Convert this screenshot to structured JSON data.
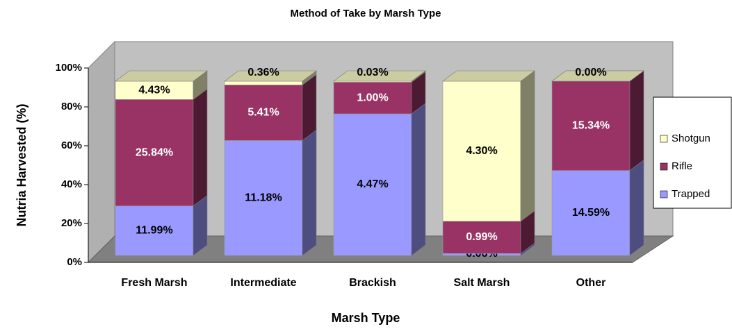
{
  "chart_data": {
    "type": "bar",
    "stacking": "percent",
    "title": "Method of Take by Marsh Type",
    "x_label": "Marsh Type",
    "y_label": "Nutria Harvested (%)",
    "categories": [
      "Fresh Marsh",
      "Intermediate",
      "Brackish",
      "Salt Marsh",
      "Other"
    ],
    "series": [
      {
        "name": "Trapped",
        "color": "#9999ff",
        "label_color": "#000000",
        "values": [
          11.99,
          11.18,
          4.47,
          0.06,
          14.59
        ],
        "value_labels": [
          "11.99%",
          "11.18%",
          "4.47%",
          "0.06%",
          "14.59%"
        ]
      },
      {
        "name": "Rifle",
        "color": "#993366",
        "label_color": "#ffffff",
        "values": [
          25.84,
          5.41,
          1.0,
          0.99,
          15.34
        ],
        "value_labels": [
          "25.84%",
          "5.41%",
          "1.00%",
          "0.99%",
          "15.34%"
        ]
      },
      {
        "name": "Shotgun",
        "color": "#ffffcc",
        "label_color": "#000000",
        "values": [
          4.43,
          0.36,
          0.03,
          4.3,
          0.0
        ],
        "value_labels": [
          "4.43%",
          "0.36%",
          "0.03%",
          "4.30%",
          "0.00%"
        ]
      }
    ],
    "ylim": [
      0,
      100
    ],
    "yticks": [
      {
        "value": 0,
        "label": "0%"
      },
      {
        "value": 20,
        "label": "20%"
      },
      {
        "value": 40,
        "label": "40%"
      },
      {
        "value": 60,
        "label": "60%"
      },
      {
        "value": 80,
        "label": "80%"
      },
      {
        "value": 100,
        "label": "100%"
      }
    ],
    "legend": "right"
  }
}
